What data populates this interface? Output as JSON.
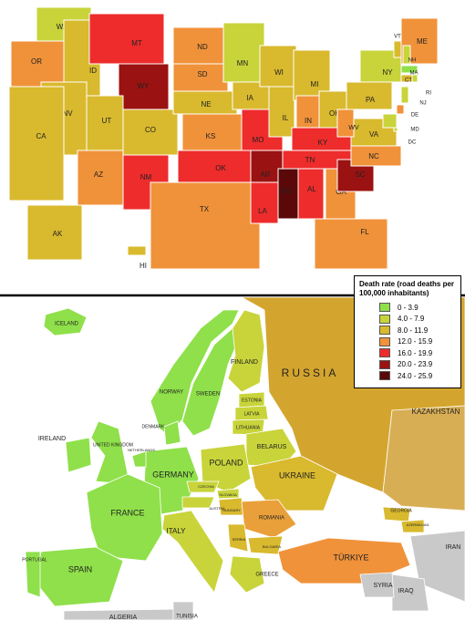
{
  "legend": {
    "title": "Death rate (road deaths per 100,000 inhabitants)",
    "items": [
      {
        "label": "0 - 3.9",
        "color": "#8fe04a"
      },
      {
        "label": "4.0 - 7.9",
        "color": "#c8d43a"
      },
      {
        "label": "8.0 - 11.9",
        "color": "#d9b92e"
      },
      {
        "label": "12.0 - 15.9",
        "color": "#f0923a"
      },
      {
        "label": "16.0 - 19.9",
        "color": "#ee2c2c"
      },
      {
        "label": "20.0 - 23.9",
        "color": "#9b1212"
      },
      {
        "label": "24.0 - 25.9",
        "color": "#5a0808"
      }
    ]
  },
  "us_map": {
    "states": [
      {
        "label": "WA",
        "color": "#c8d43a"
      },
      {
        "label": "OR",
        "color": "#f0923a"
      },
      {
        "label": "ID",
        "color": "#d9b92e"
      },
      {
        "label": "MT",
        "color": "#ee2c2c"
      },
      {
        "label": "WY",
        "color": "#9b1212"
      },
      {
        "label": "NV",
        "color": "#d9b92e"
      },
      {
        "label": "UT",
        "color": "#d9b92e"
      },
      {
        "label": "CO",
        "color": "#d9b92e"
      },
      {
        "label": "CA",
        "color": "#d9b92e"
      },
      {
        "label": "AZ",
        "color": "#f0923a"
      },
      {
        "label": "NM",
        "color": "#ee2c2c"
      },
      {
        "label": "ND",
        "color": "#f0923a"
      },
      {
        "label": "SD",
        "color": "#f0923a"
      },
      {
        "label": "NE",
        "color": "#d9b92e"
      },
      {
        "label": "KS",
        "color": "#f0923a"
      },
      {
        "label": "OK",
        "color": "#ee2c2c"
      },
      {
        "label": "TX",
        "color": "#f0923a"
      },
      {
        "label": "MN",
        "color": "#c8d43a"
      },
      {
        "label": "IA",
        "color": "#d9b92e"
      },
      {
        "label": "MO",
        "color": "#ee2c2c"
      },
      {
        "label": "AR",
        "color": "#9b1212"
      },
      {
        "label": "LA",
        "color": "#ee2c2c"
      },
      {
        "label": "WI",
        "color": "#d9b92e"
      },
      {
        "label": "IL",
        "color": "#d9b92e"
      },
      {
        "label": "MI",
        "color": "#d9b92e"
      },
      {
        "label": "IN",
        "color": "#f0923a"
      },
      {
        "label": "OH",
        "color": "#d9b92e"
      },
      {
        "label": "KY",
        "color": "#ee2c2c"
      },
      {
        "label": "TN",
        "color": "#ee2c2c"
      },
      {
        "label": "MS",
        "color": "#5a0808"
      },
      {
        "label": "AL",
        "color": "#ee2c2c"
      },
      {
        "label": "GA",
        "color": "#f0923a"
      },
      {
        "label": "FL",
        "color": "#f0923a"
      },
      {
        "label": "SC",
        "color": "#9b1212"
      },
      {
        "label": "NC",
        "color": "#f0923a"
      },
      {
        "label": "VA",
        "color": "#d9b92e"
      },
      {
        "label": "WV",
        "color": "#f0923a"
      },
      {
        "label": "PA",
        "color": "#d9b92e"
      },
      {
        "label": "NY",
        "color": "#c8d43a"
      },
      {
        "label": "ME",
        "color": "#f0923a"
      },
      {
        "label": "VT",
        "color": "#d9b92e"
      },
      {
        "label": "NH",
        "color": "#c8d43a"
      },
      {
        "label": "MA",
        "color": "#8fe04a"
      },
      {
        "label": "CT",
        "color": "#d9b92e"
      },
      {
        "label": "RI",
        "color": "#c8d43a"
      },
      {
        "label": "NJ",
        "color": "#c8d43a"
      },
      {
        "label": "DE",
        "color": "#f0923a"
      },
      {
        "label": "MD",
        "color": "#c8d43a"
      },
      {
        "label": "DC",
        "color": "#c8d43a"
      },
      {
        "label": "AK",
        "color": "#d9b92e"
      },
      {
        "label": "HI",
        "color": "#d9b92e"
      }
    ]
  },
  "europe_map": {
    "countries": [
      {
        "label": "RUSSIA",
        "color": "#d4a52e"
      },
      {
        "label": "KAZAKHSTAN",
        "color": "#d8ae55"
      },
      {
        "label": "ICELAND",
        "color": "#8fe04a"
      },
      {
        "label": "NORWAY",
        "color": "#8fe04a"
      },
      {
        "label": "SWEDEN",
        "color": "#8fe04a"
      },
      {
        "label": "FINLAND",
        "color": "#c8d43a"
      },
      {
        "label": "ESTONIA",
        "color": "#c8d43a"
      },
      {
        "label": "LATVIA",
        "color": "#c8d43a"
      },
      {
        "label": "LITHUANIA",
        "color": "#c8d43a"
      },
      {
        "label": "BELARUS",
        "color": "#c8d43a"
      },
      {
        "label": "POLAND",
        "color": "#c8d43a"
      },
      {
        "label": "UKRAINE",
        "color": "#d9b92e"
      },
      {
        "label": "GERMANY",
        "color": "#8fe04a"
      },
      {
        "label": "DENMARK",
        "color": "#8fe04a"
      },
      {
        "label": "UNITED KINGDOM",
        "color": "#8fe04a"
      },
      {
        "label": "IRELAND",
        "color": "#8fe04a"
      },
      {
        "label": "NETHERLANDS",
        "color": "#8fe04a"
      },
      {
        "label": "FRANCE",
        "color": "#8fe04a"
      },
      {
        "label": "SPAIN",
        "color": "#8fe04a"
      },
      {
        "label": "PORTUGAL",
        "color": "#8fe04a"
      },
      {
        "label": "ITALY",
        "color": "#c8d43a"
      },
      {
        "label": "CZECHIA",
        "color": "#c8d43a"
      },
      {
        "label": "AUSTRIA",
        "color": "#c8d43a"
      },
      {
        "label": "SLOVAKIA",
        "color": "#c8d43a"
      },
      {
        "label": "HUNGARY",
        "color": "#d9b92e"
      },
      {
        "label": "ROMANIA",
        "color": "#e9a03a"
      },
      {
        "label": "SERBIA",
        "color": "#d9b92e"
      },
      {
        "label": "BULGARIA",
        "color": "#d9b92e"
      },
      {
        "label": "GREECE",
        "color": "#c8d43a"
      },
      {
        "label": "TÜRKIYE",
        "color": "#f0923a"
      },
      {
        "label": "GEORGIA",
        "color": "#d9b92e"
      },
      {
        "label": "AZERBAIJAN",
        "color": "#d9b92e"
      },
      {
        "label": "IRAN",
        "color": "#c9c9c9"
      },
      {
        "label": "IRAQ",
        "color": "#c9c9c9"
      },
      {
        "label": "SYRIA",
        "color": "#c9c9c9"
      },
      {
        "label": "ALGERIA",
        "color": "#c9c9c9"
      },
      {
        "label": "TUNISIA",
        "color": "#c9c9c9"
      }
    ]
  }
}
